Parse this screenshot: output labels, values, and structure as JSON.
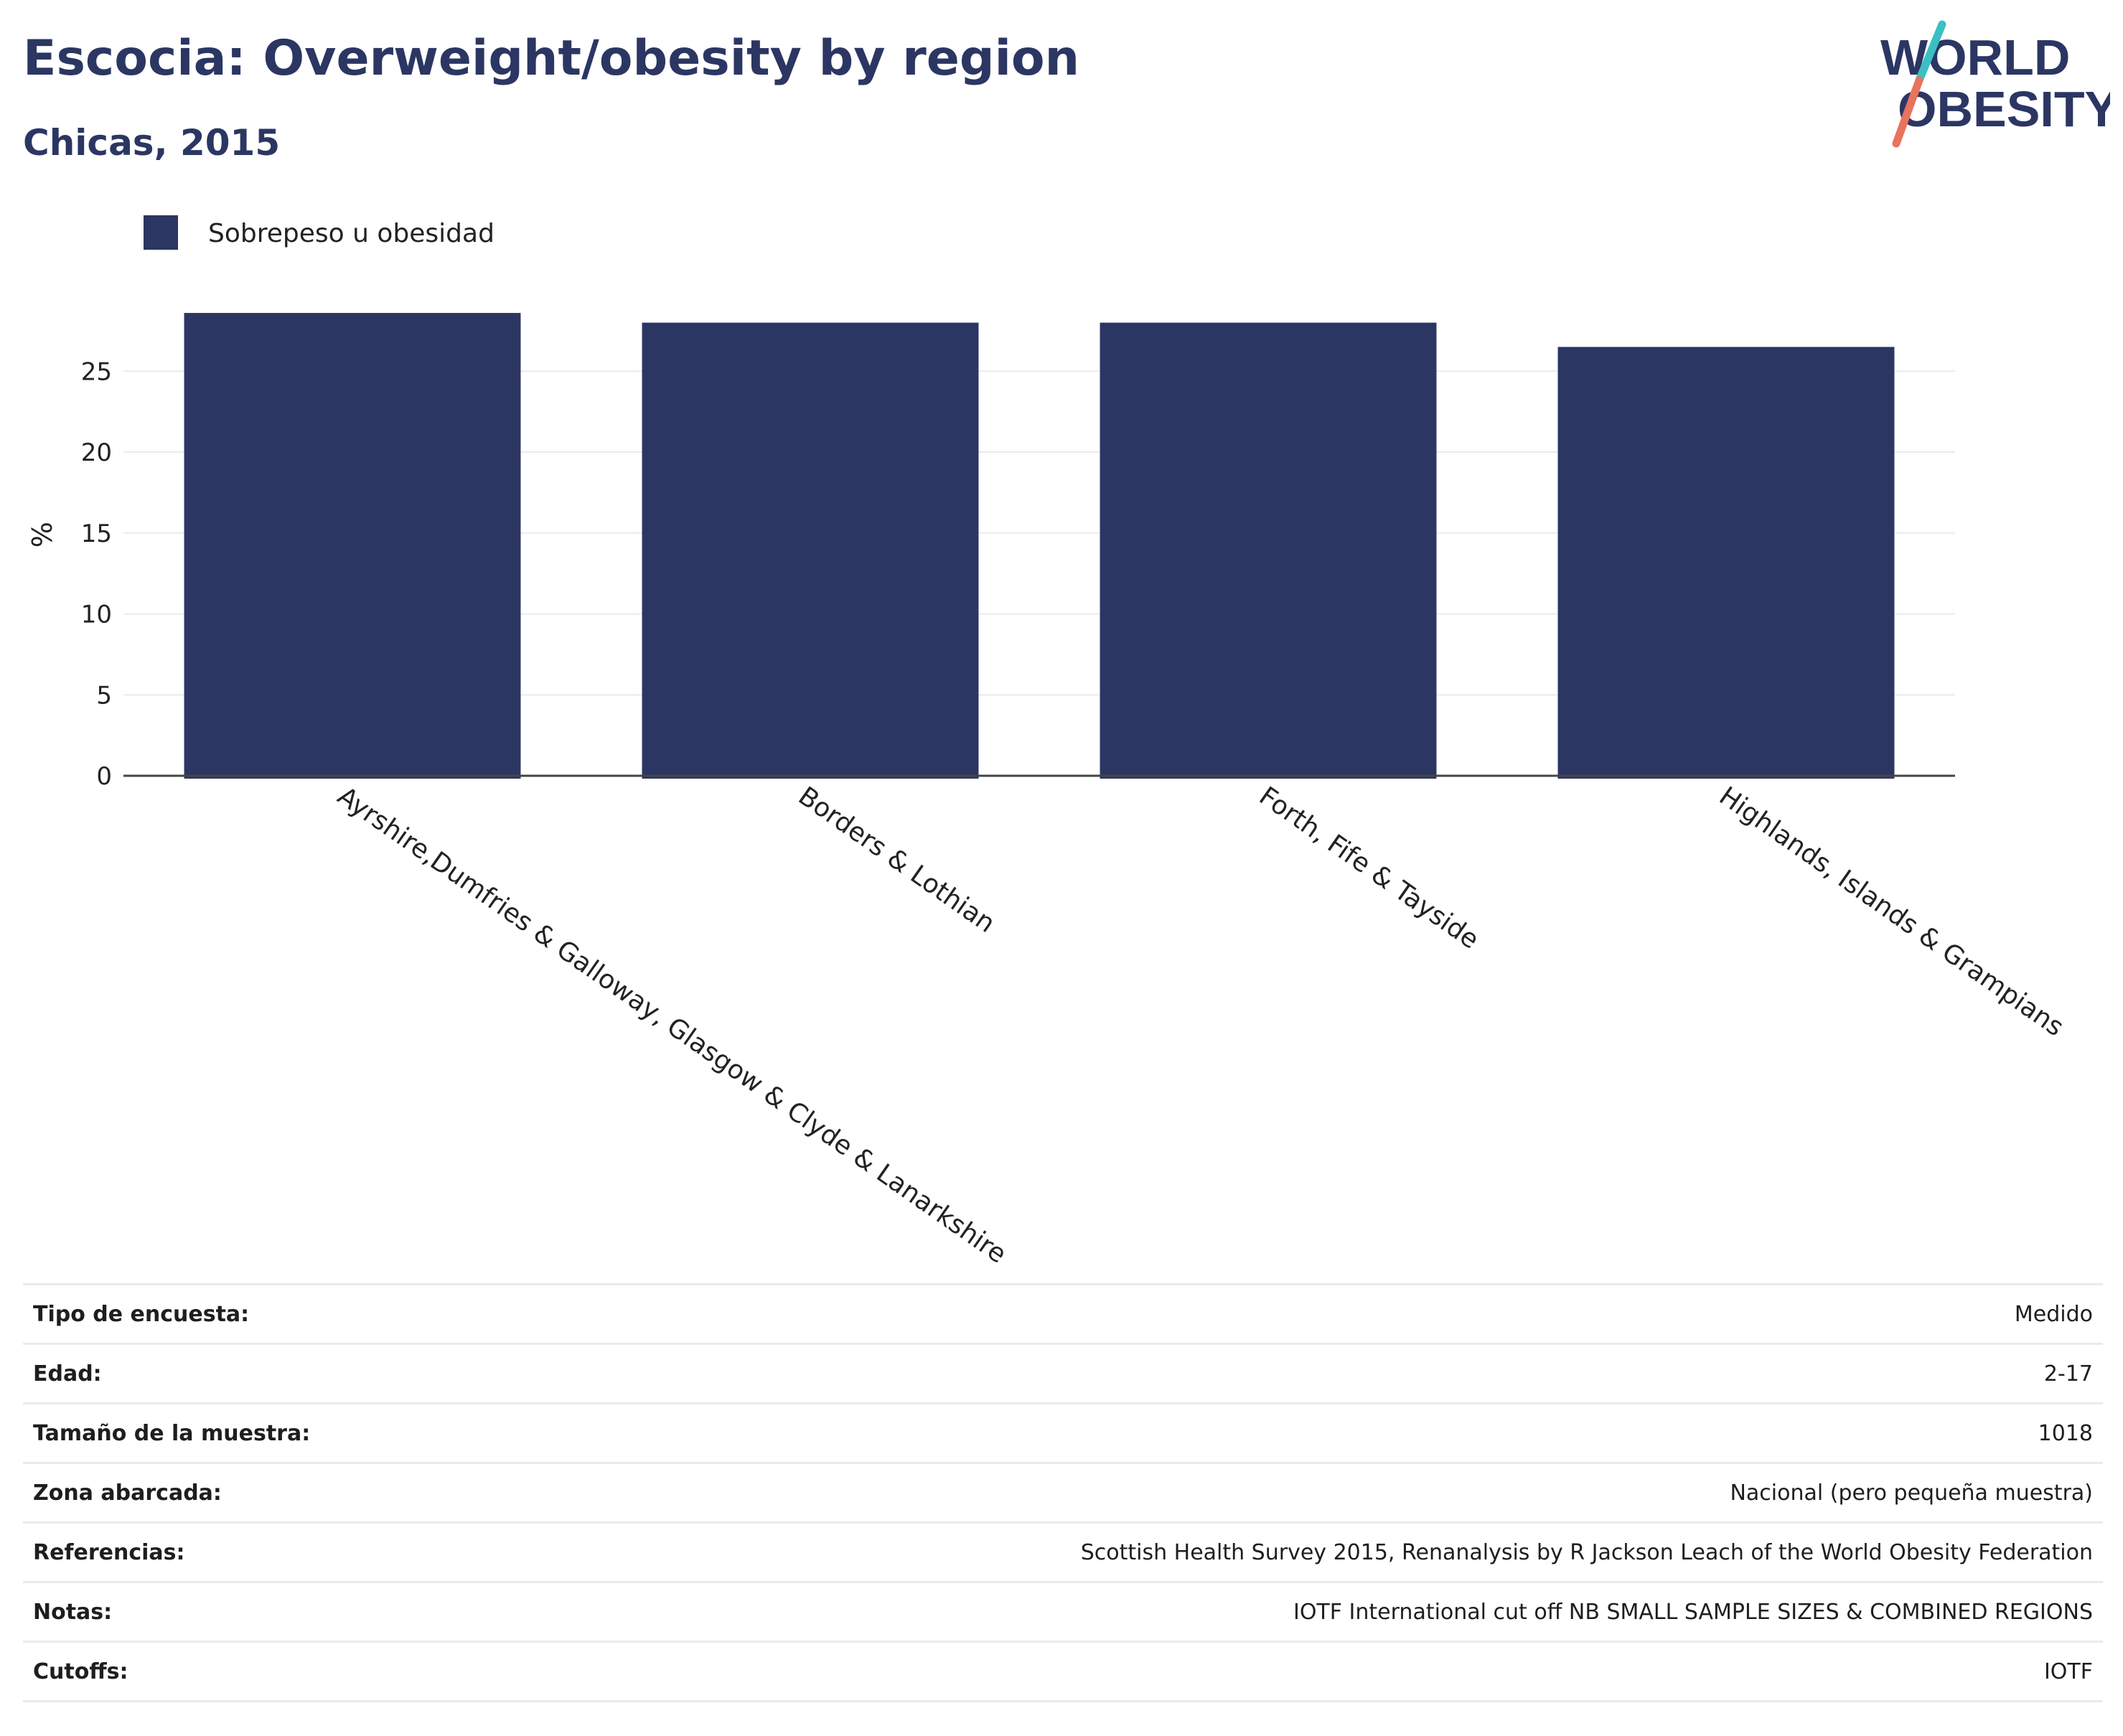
{
  "header": {
    "title": "Escocia: Overweight/obesity by region",
    "subtitle": "Chicas, 2015"
  },
  "logo": {
    "line1": "WORLD",
    "line2": "OBESITY",
    "colors": {
      "text": "#2b3663",
      "slash_top": "#3bbfc4",
      "slash_bottom": "#e8735e"
    }
  },
  "chart_data": {
    "type": "bar",
    "categories": [
      "Ayrshire,Dumfries & Galloway, Glasgow & Clyde & Lanarkshire",
      "Borders & Lothian",
      "Forth, Fife & Tayside",
      "Highlands, Islands & Grampians"
    ],
    "series": [
      {
        "name": "Sobrepeso u obesidad",
        "color": "#2b3663",
        "values": [
          28.6,
          28.0,
          28.0,
          26.5
        ]
      }
    ],
    "ylabel": "%",
    "ylim": [
      0,
      30
    ],
    "yticks": [
      0,
      5,
      10,
      15,
      20,
      25
    ],
    "grid": true,
    "legend_position": "top-left",
    "label_rotation": "diagonal"
  },
  "meta": [
    {
      "label": "Tipo de encuesta:",
      "value": "Medido"
    },
    {
      "label": "Edad:",
      "value": "2-17"
    },
    {
      "label": "Tamaño de la muestra:",
      "value": "1018"
    },
    {
      "label": "Zona abarcada:",
      "value": "Nacional (pero pequeña muestra)"
    },
    {
      "label": "Referencias:",
      "value": "Scottish Health Survey 2015, Renanalysis by R Jackson Leach of the World Obesity Federation"
    },
    {
      "label": "Notas:",
      "value": "IOTF International cut off NB SMALL SAMPLE SIZES & COMBINED REGIONS"
    },
    {
      "label": "Cutoffs:",
      "value": "IOTF"
    }
  ]
}
